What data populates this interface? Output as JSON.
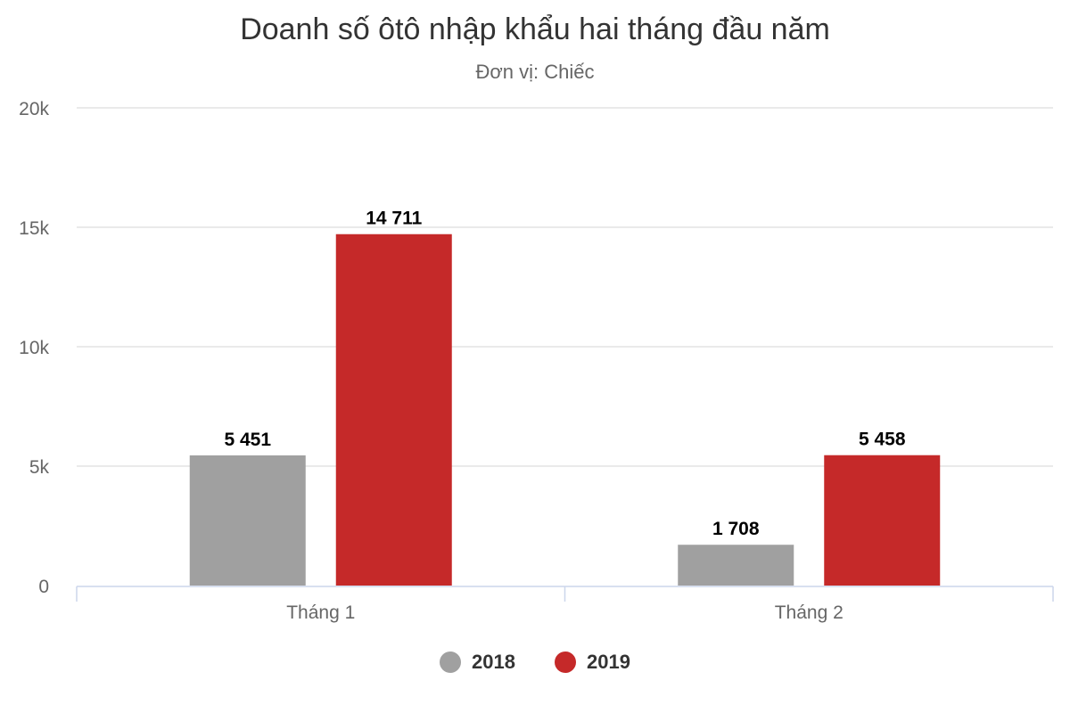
{
  "chart_data": {
    "type": "bar",
    "title": "Doanh số ôtô nhập khẩu hai tháng đầu năm",
    "subtitle": "Đơn vị: Chiếc",
    "categories": [
      "Tháng 1",
      "Tháng 2"
    ],
    "series": [
      {
        "name": "2018",
        "color": "#a0a0a0",
        "values": [
          5451,
          1708
        ],
        "labels": [
          "5 451",
          "1 708"
        ]
      },
      {
        "name": "2019",
        "color": "#c52929",
        "values": [
          14711,
          5458
        ],
        "labels": [
          "14 711",
          "5 458"
        ]
      }
    ],
    "ylim": [
      0,
      20000
    ],
    "yticks": [
      0,
      5000,
      10000,
      15000,
      20000
    ],
    "ytick_labels": [
      "0",
      "5k",
      "10k",
      "15k",
      "20k"
    ],
    "grid": true,
    "legend_position": "bottom-center"
  }
}
